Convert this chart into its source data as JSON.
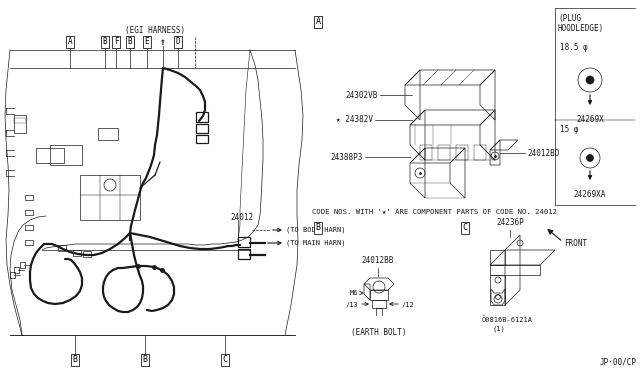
{
  "bg_color": "#ffffff",
  "line_color": "#1a1a1a",
  "lw_thin": 0.5,
  "lw_med": 0.9,
  "lw_thick": 1.6,
  "left": {
    "egi_harness": "(EGI HARNESS)",
    "connectors": [
      "A",
      "BF",
      "B",
      "E",
      "D"
    ],
    "bottom_refs": [
      "B",
      "B",
      "C"
    ],
    "label_24012": "24012",
    "to_body": "(TO BODY HARN)",
    "to_main": "(TO MAIN HARN)"
  },
  "right": {
    "secA": "A",
    "secB": "B",
    "secC": "C",
    "parts_A": [
      "24302VB",
      "≂24382V",
      "24388P3",
      "24012BD"
    ],
    "plug_title": "(PLUG\nHOODLEDGE)",
    "plug1_phi": "18.5 φ",
    "plug1_code": "24269X",
    "plug2_phi": "15 φ",
    "plug2_code": "24269XA",
    "code_note": "CODE NOS. WITH '★' ARE COMPONENT PARTS OF CODE NO. 24012",
    "bolt_code": "24012BB",
    "m6": "M6",
    "phi13": "∕13",
    "phi12": "∕12",
    "earth_bolt": "(EARTH BOLT)",
    "bracket_code": "24236P",
    "bolt2": "Ö0816B-6121A",
    "bolt2_qty": "(1)",
    "front": "FRONT",
    "page": "JP·00/CP"
  }
}
